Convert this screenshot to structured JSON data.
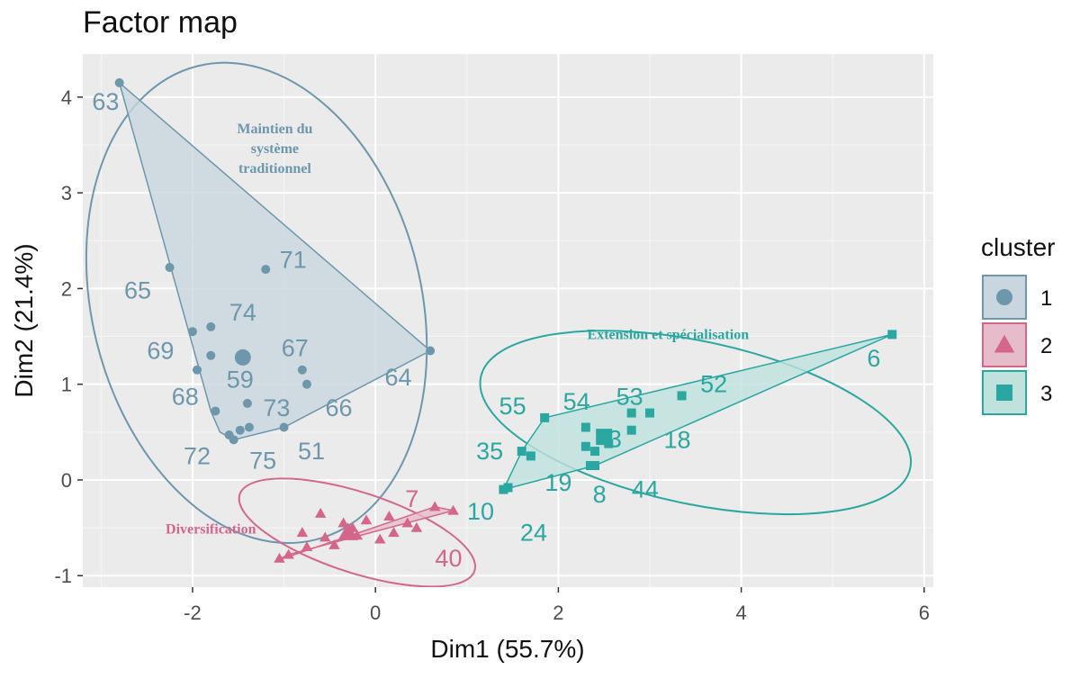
{
  "chart_data": {
    "type": "scatter",
    "title": "Factor map",
    "xlabel": "Dim1 (55.7%)",
    "ylabel": "Dim2 (21.4%)",
    "xlim": [
      -3.2,
      6.1
    ],
    "ylim": [
      -1.12,
      4.45
    ],
    "xticks": [
      -2,
      0,
      2,
      4,
      6
    ],
    "yticks": [
      -1,
      0,
      1,
      2,
      3,
      4
    ],
    "grid": true,
    "legend": {
      "title": "cluster",
      "position": "right"
    },
    "clusters": [
      {
        "id": "1",
        "name": "1",
        "color": "#6c97ac",
        "fill": "#c9d6df",
        "shape": "circle",
        "annotation": [
          "Maintien du",
          "système",
          "traditionnel"
        ],
        "annotation_pos": [
          -1.1,
          3.62
        ],
        "ellipse": {
          "cx": -1.3,
          "cy": 1.85,
          "rx": 1.8,
          "ry": 2.55,
          "angle": -14
        },
        "center": [
          -1.45,
          1.28
        ],
        "hull": [
          [
            -2.8,
            4.15
          ],
          [
            0.6,
            1.35
          ],
          [
            -1.0,
            0.55
          ],
          [
            -1.55,
            0.42
          ],
          [
            -1.7,
            0.5
          ],
          [
            -1.8,
            0.72
          ]
        ],
        "points": [
          {
            "label": "63",
            "x": -2.8,
            "y": 4.15,
            "lx": -2.95,
            "ly": 3.95
          },
          {
            "label": "71",
            "x": -1.2,
            "y": 2.2,
            "lx": -0.9,
            "ly": 2.3
          },
          {
            "label": "65",
            "x": -2.25,
            "y": 2.22,
            "lx": -2.6,
            "ly": 1.98
          },
          {
            "label": "74",
            "x": -1.8,
            "y": 1.6,
            "lx": -1.45,
            "ly": 1.75
          },
          {
            "label": "69",
            "x": -2.0,
            "y": 1.55,
            "lx": -2.35,
            "ly": 1.35
          },
          {
            "label": "59",
            "x": -1.8,
            "y": 1.3,
            "lx": -1.48,
            "ly": 1.05
          },
          {
            "label": "67",
            "x": -0.8,
            "y": 1.15,
            "lx": -0.88,
            "ly": 1.38
          },
          {
            "label": "64",
            "x": -0.75,
            "y": 1.0,
            "lx": 0.25,
            "ly": 1.07
          },
          {
            "label": "68",
            "x": -1.75,
            "y": 0.72,
            "lx": -2.08,
            "ly": 0.87
          },
          {
            "label": "73",
            "x": -1.4,
            "y": 0.8,
            "lx": -1.08,
            "ly": 0.75
          },
          {
            "label": "66",
            "x": -1.38,
            "y": 0.55,
            "lx": -0.4,
            "ly": 0.75
          },
          {
            "label": "72",
            "x": -1.6,
            "y": 0.47,
            "lx": -1.95,
            "ly": 0.25
          },
          {
            "label": "75",
            "x": -1.48,
            "y": 0.52,
            "lx": -1.23,
            "ly": 0.2
          },
          {
            "label": "51",
            "x": -1.0,
            "y": 0.55,
            "lx": -0.7,
            "ly": 0.3
          },
          {
            "label": "",
            "x": -1.55,
            "y": 0.42
          },
          {
            "label": "",
            "x": -1.95,
            "y": 1.15
          },
          {
            "label": "",
            "x": 0.6,
            "y": 1.35
          }
        ]
      },
      {
        "id": "2",
        "name": "2",
        "color": "#d4668c",
        "fill": "#e6bccb",
        "shape": "triangle",
        "annotation": [
          "Diversification"
        ],
        "annotation_pos": [
          -1.8,
          -0.56
        ],
        "ellipse": {
          "cx": -0.2,
          "cy": -0.55,
          "rx": 1.35,
          "ry": 0.42,
          "angle": 18
        },
        "center": [
          -0.3,
          -0.55
        ],
        "hull": [
          [
            -1.1,
            -0.85
          ],
          [
            0.65,
            -0.28
          ],
          [
            0.85,
            -0.32
          ],
          [
            -0.95,
            -0.78
          ]
        ],
        "points": [
          {
            "label": "7",
            "x": 0.65,
            "y": -0.28,
            "lx": 0.4,
            "ly": -0.2
          },
          {
            "label": "40",
            "x": 0.2,
            "y": -0.55,
            "lx": 0.8,
            "ly": -0.82
          },
          {
            "label": "",
            "x": 0.85,
            "y": -0.32
          },
          {
            "label": "",
            "x": -0.6,
            "y": -0.35
          },
          {
            "label": "",
            "x": -0.35,
            "y": -0.45
          },
          {
            "label": "",
            "x": -0.1,
            "y": -0.42
          },
          {
            "label": "",
            "x": 0.15,
            "y": -0.38
          },
          {
            "label": "",
            "x": 0.35,
            "y": -0.45
          },
          {
            "label": "",
            "x": -0.8,
            "y": -0.55
          },
          {
            "label": "",
            "x": -0.55,
            "y": -0.6
          },
          {
            "label": "",
            "x": -0.2,
            "y": -0.58
          },
          {
            "label": "",
            "x": 0.05,
            "y": -0.62
          },
          {
            "label": "",
            "x": -0.95,
            "y": -0.78
          },
          {
            "label": "",
            "x": -0.75,
            "y": -0.7
          },
          {
            "label": "",
            "x": -1.05,
            "y": -0.82
          },
          {
            "label": "",
            "x": -0.45,
            "y": -0.68
          },
          {
            "label": "",
            "x": 0.45,
            "y": -0.5
          },
          {
            "label": "",
            "x": -0.25,
            "y": -0.5
          }
        ]
      },
      {
        "id": "3",
        "name": "3",
        "color": "#2aa7a0",
        "fill": "#bfe2dd",
        "shape": "square",
        "annotation": [
          "Extension et spécialisation"
        ],
        "annotation_pos": [
          3.2,
          1.47
        ],
        "ellipse": {
          "cx": 3.5,
          "cy": 0.6,
          "rx": 2.4,
          "ry": 0.85,
          "angle": 12
        },
        "center": [
          2.5,
          0.45
        ],
        "hull": [
          [
            1.4,
            -0.1
          ],
          [
            1.6,
            0.3
          ],
          [
            1.85,
            0.65
          ],
          [
            5.65,
            1.52
          ],
          [
            2.4,
            0.15
          ]
        ],
        "points": [
          {
            "label": "6",
            "x": 5.65,
            "y": 1.52,
            "lx": 5.45,
            "ly": 1.27
          },
          {
            "label": "52",
            "x": 3.35,
            "y": 0.88,
            "lx": 3.7,
            "ly": 1.0
          },
          {
            "label": "53",
            "x": 2.8,
            "y": 0.7,
            "lx": 2.78,
            "ly": 0.87
          },
          {
            "label": "54",
            "x": 2.3,
            "y": 0.55,
            "lx": 2.2,
            "ly": 0.82
          },
          {
            "label": "55",
            "x": 1.85,
            "y": 0.65,
            "lx": 1.5,
            "ly": 0.77
          },
          {
            "label": "35",
            "x": 1.6,
            "y": 0.3,
            "lx": 1.25,
            "ly": 0.3
          },
          {
            "label": "3",
            "x": 2.5,
            "y": 0.45,
            "lx": 2.62,
            "ly": 0.43
          },
          {
            "label": "18",
            "x": 3.0,
            "y": 0.7,
            "lx": 3.3,
            "ly": 0.42
          },
          {
            "label": "19",
            "x": 1.7,
            "y": 0.25,
            "lx": 2.0,
            "ly": -0.03
          },
          {
            "label": "8",
            "x": 2.4,
            "y": 0.15,
            "lx": 2.45,
            "ly": -0.15
          },
          {
            "label": "44",
            "x": 2.35,
            "y": 0.15,
            "lx": 2.95,
            "ly": -0.1
          },
          {
            "label": "10",
            "x": 1.45,
            "y": -0.08,
            "lx": 1.15,
            "ly": -0.33
          },
          {
            "label": "24",
            "x": 1.4,
            "y": -0.1,
            "lx": 1.73,
            "ly": -0.55
          },
          {
            "label": "",
            "x": 2.8,
            "y": 0.52
          },
          {
            "label": "",
            "x": 2.3,
            "y": 0.35
          },
          {
            "label": "",
            "x": 2.4,
            "y": 0.3
          },
          {
            "label": "",
            "x": 2.55,
            "y": 0.38
          }
        ]
      }
    ]
  }
}
